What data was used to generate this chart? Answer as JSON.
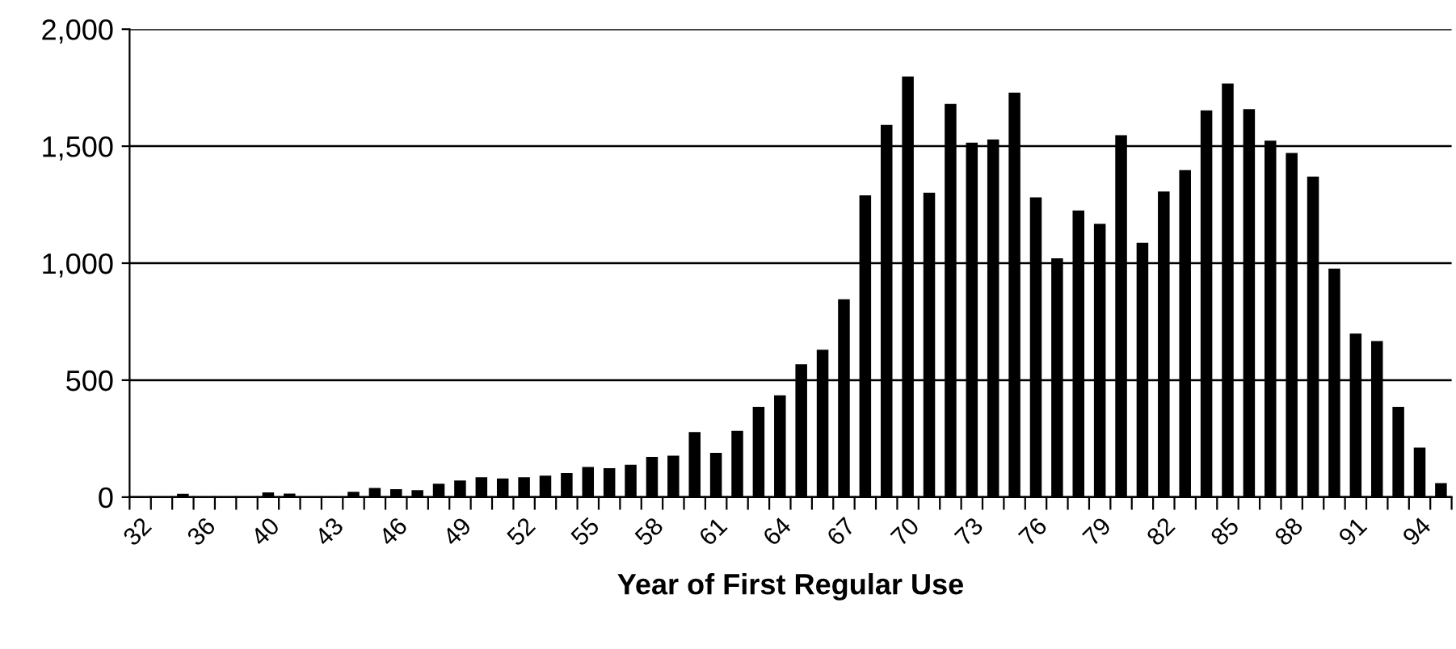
{
  "chart_data": {
    "type": "bar",
    "xlabel": "Year of First Regular Use",
    "categories": [
      "32",
      null,
      null,
      "36",
      null,
      null,
      "40",
      null,
      null,
      "43",
      null,
      null,
      "46",
      null,
      null,
      "49",
      null,
      null,
      "52",
      null,
      null,
      "55",
      null,
      null,
      "58",
      null,
      null,
      "61",
      null,
      null,
      "64",
      null,
      null,
      "67",
      null,
      null,
      "70",
      null,
      null,
      "73",
      null,
      null,
      "76",
      null,
      null,
      "79",
      null,
      null,
      "82",
      null,
      null,
      "85",
      null,
      null,
      "88",
      null,
      null,
      "91",
      null,
      null,
      "94",
      null
    ],
    "values": [
      0,
      0,
      14,
      0,
      0,
      0,
      20,
      15,
      0,
      0,
      23,
      39,
      34,
      30,
      57,
      71,
      85,
      80,
      85,
      92,
      103,
      129,
      124,
      138,
      172,
      177,
      278,
      189,
      283,
      386,
      435,
      568,
      630,
      846,
      1290,
      1591,
      1798,
      1301,
      1681,
      1515,
      1529,
      1729,
      1281,
      1021,
      1225,
      1168,
      1547,
      1087,
      1306,
      1398,
      1653,
      1768,
      1658,
      1524,
      1471,
      1370,
      977,
      699,
      667,
      386,
      212,
      60
    ],
    "color": "#000000",
    "ylim": [
      0,
      2000
    ],
    "yticks": [
      {
        "value": 0,
        "label": "0"
      },
      {
        "value": 500,
        "label": "500"
      },
      {
        "value": 1000,
        "label": "1,000"
      },
      {
        "value": 1500,
        "label": "1,500"
      },
      {
        "value": 2000,
        "label": "2,000"
      }
    ],
    "grid": "y"
  }
}
